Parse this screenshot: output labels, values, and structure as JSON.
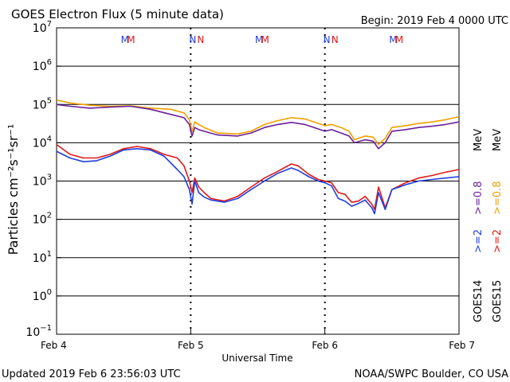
{
  "header": {
    "title": "GOES Electron Flux (5 minute data)",
    "begin": "Begin: 2019 Feb 4 0000 UTC"
  },
  "footer": {
    "updated": "Updated 2019 Feb  6 23:56:03 UTC",
    "source": "NOAA/SWPC Boulder, CO USA"
  },
  "colors": {
    "goes14_2mev": "#1f3fdf",
    "goes15_2mev": "#e01818",
    "goes14_08mev": "#6a1f9a",
    "goes15_08mev": "#f0a000"
  },
  "legend": {
    "g14_label": "GOES14",
    "g15_label": "GOES15",
    "g14_2mev": ">=2",
    "g15_2mev": ">=2",
    "g14_08mev": ">=0.8",
    "g15_08mev": ">=0.8",
    "unit1": "MeV",
    "unit2": "MeV"
  },
  "chart_data": {
    "type": "line",
    "title": "GOES Electron Flux (5 minute data)",
    "xlabel": "Universal Time",
    "ylabel": "Particles cm⁻²s⁻¹sr⁻¹",
    "y_scale": "log",
    "ylim": [
      0.1,
      10000000
    ],
    "x_unit": "days since 2019 Feb 4 0000 UTC",
    "xlim": [
      0,
      3
    ],
    "x_ticks": [
      {
        "value": 0,
        "label": "Feb 4"
      },
      {
        "value": 1,
        "label": "Feb 5"
      },
      {
        "value": 2,
        "label": "Feb 6"
      },
      {
        "value": 3,
        "label": "Feb 7"
      }
    ],
    "y_ticks": [
      {
        "exp": -1,
        "base": "10",
        "sup": "−1"
      },
      {
        "exp": 0,
        "base": "10",
        "sup": "0"
      },
      {
        "exp": 1,
        "base": "10",
        "sup": "1"
      },
      {
        "exp": 2,
        "base": "10",
        "sup": "2"
      },
      {
        "exp": 3,
        "base": "10",
        "sup": "3"
      },
      {
        "exp": 4,
        "base": "10",
        "sup": "4"
      },
      {
        "exp": 5,
        "base": "10",
        "sup": "5"
      },
      {
        "exp": 6,
        "base": "10",
        "sup": "6"
      },
      {
        "exp": 7,
        "base": "10",
        "sup": "7"
      }
    ],
    "threshold": {
      "value": 1000,
      "style": "dashed"
    },
    "noon_markers": [
      {
        "x": 0.48,
        "label": "M",
        "color": "#1f3fdf"
      },
      {
        "x": 0.525,
        "label": "M",
        "color": "#e01818"
      },
      {
        "x": 0.985,
        "label": "N",
        "color": "#1f3fdf"
      },
      {
        "x": 1.045,
        "label": "N",
        "color": "#e01818"
      },
      {
        "x": 1.48,
        "label": "M",
        "color": "#1f3fdf"
      },
      {
        "x": 1.525,
        "label": "M",
        "color": "#e01818"
      },
      {
        "x": 1.985,
        "label": "N",
        "color": "#1f3fdf"
      },
      {
        "x": 2.045,
        "label": "N",
        "color": "#e01818"
      },
      {
        "x": 2.48,
        "label": "M",
        "color": "#1f3fdf"
      },
      {
        "x": 2.525,
        "label": "M",
        "color": "#e01818"
      },
      {
        "x": 2.985,
        "label": "N",
        "color": "#1f3fdf"
      },
      {
        "x": 3.045,
        "label": "N",
        "color": "#e01818"
      }
    ],
    "series": [
      {
        "name": "GOES15 >=0.8 MeV",
        "color": "#f0a000",
        "x": [
          0,
          0.1,
          0.25,
          0.4,
          0.55,
          0.7,
          0.85,
          0.95,
          0.99,
          1.01,
          1.03,
          1.06,
          1.1,
          1.2,
          1.35,
          1.45,
          1.55,
          1.65,
          1.75,
          1.85,
          1.92,
          2.0,
          2.05,
          2.12,
          2.18,
          2.22,
          2.3,
          2.36,
          2.4,
          2.45,
          2.5,
          2.6,
          2.7,
          2.8,
          2.9,
          3.0
        ],
        "y": [
          130000,
          110000,
          95000,
          90000,
          92000,
          80000,
          75000,
          60000,
          40000,
          20000,
          35000,
          30000,
          25000,
          18000,
          17000,
          20000,
          30000,
          38000,
          45000,
          42000,
          35000,
          28000,
          30000,
          25000,
          20000,
          12000,
          15000,
          14000,
          9000,
          13000,
          25000,
          28000,
          32000,
          35000,
          40000,
          48000
        ]
      },
      {
        "name": "GOES14 >=0.8 MeV",
        "color": "#6a1f9a",
        "x": [
          0,
          0.1,
          0.25,
          0.4,
          0.55,
          0.7,
          0.85,
          0.95,
          0.99,
          1.01,
          1.03,
          1.06,
          1.1,
          1.2,
          1.35,
          1.45,
          1.55,
          1.65,
          1.75,
          1.85,
          1.92,
          2.0,
          2.05,
          2.12,
          2.18,
          2.22,
          2.3,
          2.36,
          2.4,
          2.45,
          2.5,
          2.6,
          2.7,
          2.8,
          2.9,
          3.0
        ],
        "y": [
          100000,
          90000,
          80000,
          85000,
          90000,
          75000,
          55000,
          45000,
          30000,
          15000,
          25000,
          22000,
          20000,
          16000,
          15000,
          18000,
          25000,
          30000,
          34000,
          30000,
          25000,
          20000,
          22000,
          18000,
          15000,
          10000,
          12000,
          11000,
          7000,
          10000,
          20000,
          22000,
          25000,
          27000,
          30000,
          35000
        ]
      },
      {
        "name": "GOES15 >=2 MeV",
        "color": "#e01818",
        "x": [
          0,
          0.1,
          0.2,
          0.3,
          0.4,
          0.5,
          0.6,
          0.7,
          0.8,
          0.9,
          0.95,
          0.99,
          1.01,
          1.03,
          1.06,
          1.1,
          1.15,
          1.25,
          1.35,
          1.45,
          1.55,
          1.65,
          1.75,
          1.8,
          1.88,
          1.95,
          2.0,
          2.05,
          2.1,
          2.15,
          2.2,
          2.25,
          2.3,
          2.35,
          2.37,
          2.4,
          2.45,
          2.5,
          2.6,
          2.7,
          2.8,
          2.9,
          3.0
        ],
        "y": [
          9000,
          5000,
          4000,
          4000,
          5000,
          7000,
          8000,
          7000,
          5000,
          4000,
          2500,
          1000,
          500,
          1200,
          700,
          500,
          350,
          300,
          400,
          700,
          1200,
          1800,
          2800,
          2500,
          1500,
          1100,
          1000,
          900,
          500,
          450,
          280,
          300,
          400,
          250,
          180,
          700,
          200,
          600,
          900,
          1200,
          1400,
          1700,
          2000
        ]
      },
      {
        "name": "GOES14 >=2 MeV",
        "color": "#1f3fdf",
        "x": [
          0,
          0.1,
          0.2,
          0.3,
          0.4,
          0.5,
          0.6,
          0.7,
          0.8,
          0.9,
          0.95,
          0.99,
          1.01,
          1.03,
          1.06,
          1.1,
          1.15,
          1.25,
          1.35,
          1.45,
          1.55,
          1.65,
          1.75,
          1.8,
          1.88,
          1.95,
          2.0,
          2.05,
          2.1,
          2.15,
          2.2,
          2.25,
          2.3,
          2.35,
          2.37,
          2.4,
          2.45,
          2.5,
          2.6,
          2.7,
          2.8,
          2.9,
          3.0
        ],
        "y": [
          6000,
          4000,
          3200,
          3400,
          4500,
          6500,
          7000,
          6500,
          4500,
          2000,
          1300,
          600,
          250,
          1000,
          500,
          380,
          320,
          280,
          350,
          600,
          1000,
          1600,
          2200,
          1900,
          1300,
          1000,
          900,
          750,
          350,
          300,
          220,
          260,
          320,
          200,
          140,
          500,
          180,
          600,
          800,
          1000,
          1100,
          1200,
          1300
        ]
      }
    ]
  }
}
